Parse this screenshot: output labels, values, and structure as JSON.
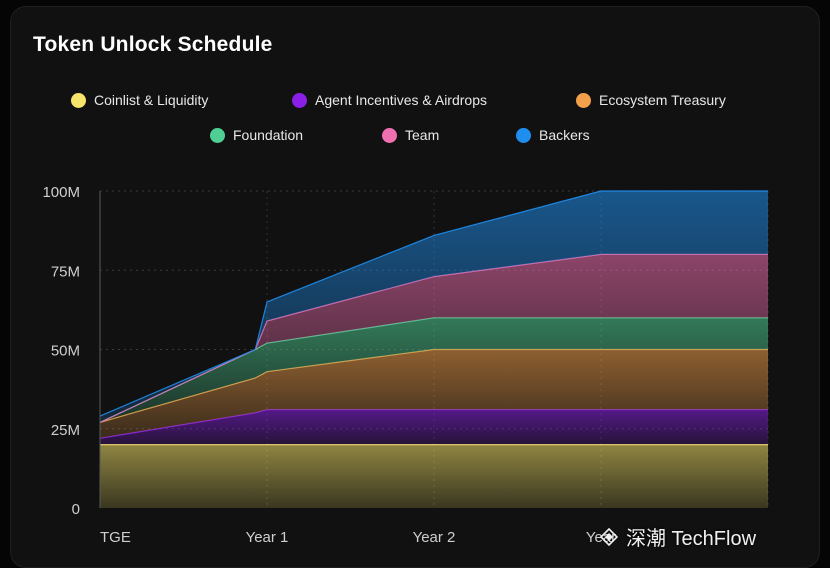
{
  "title": "Token Unlock Schedule",
  "legend": [
    {
      "label": "Coinlist & Liquidity",
      "color": "#f7e46a"
    },
    {
      "label": "Agent Incentives & Airdrops",
      "color": "#8a1fe8"
    },
    {
      "label": "Ecosystem Treasury",
      "color": "#f3a04a"
    },
    {
      "label": "Foundation",
      "color": "#4fcf94"
    },
    {
      "label": "Team",
      "color": "#f06fb0"
    },
    {
      "label": "Backers",
      "color": "#1f8fef"
    }
  ],
  "watermark": "深潮 TechFlow",
  "chart_data": {
    "type": "area",
    "stacked": true,
    "title": "Token Unlock Schedule",
    "x_tick_labels": [
      "TGE",
      "Year 1",
      "Year 2",
      "Year",
      ""
    ],
    "y_tick_labels": [
      "0",
      "25M",
      "50M",
      "75M",
      "100M"
    ],
    "ylim": [
      0,
      100
    ],
    "y_unit": "M",
    "grid": true,
    "legend_position": "top",
    "x": [
      0,
      0.93,
      1.0,
      2.0,
      3.0,
      4.0
    ],
    "series": [
      {
        "name": "Coinlist & Liquidity",
        "color": "#f7e46a",
        "values": [
          20,
          20,
          20,
          20,
          20,
          20
        ]
      },
      {
        "name": "Agent Incentives & Airdrops",
        "color": "#8a1fe8",
        "values": [
          2,
          10,
          11,
          11,
          11,
          11
        ]
      },
      {
        "name": "Ecosystem Treasury",
        "color": "#f3a04a",
        "values": [
          5,
          11,
          12,
          19,
          19,
          19
        ]
      },
      {
        "name": "Foundation",
        "color": "#4fcf94",
        "values": [
          0,
          9,
          9,
          10,
          10,
          10
        ]
      },
      {
        "name": "Team",
        "color": "#f06fb0",
        "values": [
          0,
          0,
          7,
          13,
          20,
          20
        ]
      },
      {
        "name": "Backers",
        "color": "#1f8fef",
        "values": [
          2,
          0,
          6,
          13,
          20,
          20
        ]
      }
    ]
  }
}
